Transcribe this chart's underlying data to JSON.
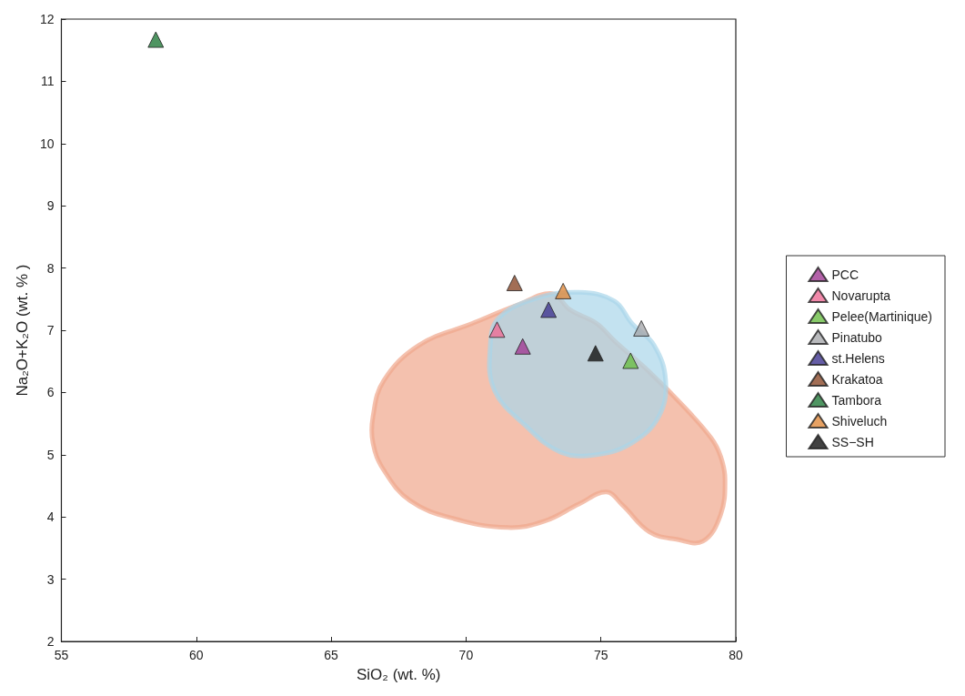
{
  "chart_data": {
    "type": "scatter",
    "xlabel": "SiO₂ (wt. %)",
    "ylabel": "Na₂O+K₂O (wt. % )",
    "xlim": [
      55,
      80
    ],
    "xticks": [
      55,
      60,
      65,
      70,
      75,
      80
    ],
    "ylim": [
      2,
      12
    ],
    "yticks": [
      2,
      3,
      4,
      5,
      6,
      7,
      8,
      9,
      10,
      11,
      12
    ],
    "grid": false,
    "legend": "right",
    "marker": "triangle",
    "series": [
      {
        "type": "area",
        "marker": "none",
        "color": "#f0a78c",
        "x": [
          66.55,
          66.95,
          68.26,
          70.23,
          71.88,
          73.19,
          73.85,
          74.84,
          75.5,
          76.8,
          78.1,
          79.1,
          79.44,
          79.6,
          79.44,
          78.78,
          77.8,
          76.8,
          75.8,
          75.2,
          74.2,
          72.9,
          71.55,
          69.57,
          67.93,
          66.94,
          66.55
        ],
        "values": [
          5.61,
          6.19,
          6.76,
          7.11,
          7.4,
          7.59,
          7.33,
          7.11,
          6.83,
          6.33,
          5.76,
          5.26,
          4.97,
          4.61,
          4.04,
          3.61,
          3.64,
          3.76,
          4.19,
          4.4,
          4.21,
          3.93,
          3.83,
          3.97,
          4.26,
          4.76,
          5.19
        ]
      },
      {
        "type": "area",
        "marker": "none",
        "color": "#a9d6ea",
        "x": [
          72.5,
          74.2,
          75.5,
          76.15,
          76.97,
          77.4,
          77.14,
          76.15,
          74.84,
          73.52,
          72.2,
          71.05,
          70.9,
          71.2
        ],
        "values": [
          7.5,
          7.61,
          7.47,
          7.11,
          6.76,
          6.19,
          5.61,
          5.19,
          5,
          5.04,
          5.47,
          6.04,
          6.76,
          7.19
        ]
      },
      {
        "name": "PCC",
        "color": "#a03a93",
        "x": [
          72.1
        ],
        "values": [
          6.74
        ]
      },
      {
        "name": "Novarupta",
        "color": "#ee6c95",
        "x": [
          71.15
        ],
        "values": [
          7.01
        ]
      },
      {
        "name": "Pelee(Martinique)",
        "color": "#6abd45",
        "x": [
          76.1
        ],
        "values": [
          6.51
        ]
      },
      {
        "name": "Pinatubo",
        "color": "#a7a9ac",
        "x": [
          76.5
        ],
        "values": [
          7.03
        ]
      },
      {
        "name": "st.Helens",
        "color": "#3f3590",
        "x": [
          73.06
        ],
        "values": [
          7.33
        ]
      },
      {
        "name": "Krakatoa",
        "color": "#8b4a2b",
        "x": [
          71.8
        ],
        "values": [
          7.76
        ]
      },
      {
        "name": "Tambora",
        "color": "#237a3b",
        "x": [
          58.5
        ],
        "values": [
          11.67
        ]
      },
      {
        "name": "Shiveluch",
        "color": "#e08a3c",
        "x": [
          73.6
        ],
        "values": [
          7.63
        ]
      },
      {
        "name": "SS−SH",
        "color": "#111111",
        "x": [
          74.8
        ],
        "values": [
          6.63
        ]
      }
    ]
  }
}
